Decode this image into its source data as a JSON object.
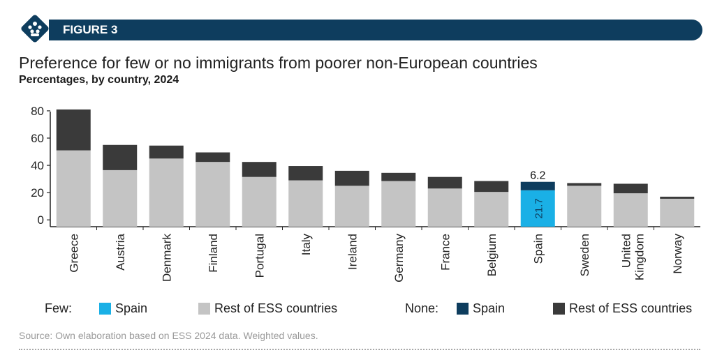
{
  "header": {
    "figure_label": "FIGURE 3",
    "logo_icon": "people-group-icon"
  },
  "title": "Preference for few or no immigrants from poorer non-European countries",
  "subtitle": "Percentages, by country, 2024",
  "legend": {
    "few_label": "Few:",
    "none_label": "None:",
    "items": [
      {
        "name": "Spain",
        "color": "#1ab0e6"
      },
      {
        "name": "Rest of ESS countries",
        "color": "#c4c4c4"
      },
      {
        "name": "Spain",
        "color": "#0e3d5e"
      },
      {
        "name": "Rest of ESS countries",
        "color": "#3a3a3a"
      }
    ]
  },
  "source": "Source: Own elaboration based on ESS 2024 data. Weighted values.",
  "chart_data": {
    "type": "bar",
    "stacked": true,
    "categories": [
      "Greece",
      "Austria",
      "Denmark",
      "Finland",
      "Portugal",
      "Italy",
      "Ireland",
      "Germany",
      "France",
      "Belgium",
      "Spain",
      "Sweden",
      "United Kingdom",
      "Norway"
    ],
    "category_lines": [
      [
        "Greece"
      ],
      [
        "Austria"
      ],
      [
        "Denmark"
      ],
      [
        "Finland"
      ],
      [
        "Portugal"
      ],
      [
        "Italy"
      ],
      [
        "Ireland"
      ],
      [
        "Germany"
      ],
      [
        "France"
      ],
      [
        "Belgium"
      ],
      [
        "Spain"
      ],
      [
        "Sweden"
      ],
      [
        "United",
        "Kingdom"
      ],
      [
        "Norway"
      ]
    ],
    "series": [
      {
        "name": "Few",
        "values": [
          51,
          36.5,
          45,
          42.5,
          31.5,
          29,
          25,
          28.5,
          23,
          20.5,
          21.7,
          25,
          19.5,
          15.5
        ]
      },
      {
        "name": "None",
        "values": [
          30,
          18.5,
          9.5,
          7,
          11,
          10.5,
          11,
          6,
          8.5,
          8,
          6.2,
          2,
          7,
          1.5
        ]
      }
    ],
    "highlight_category": "Spain",
    "colors": {
      "few": "#c4c4c4",
      "none": "#3a3a3a",
      "few_highlight": "#1ab0e6",
      "none_highlight": "#0e3d5e"
    },
    "data_labels": {
      "few": "21.7",
      "none": "6.2"
    },
    "yticks": [
      0,
      20,
      40,
      60,
      80
    ],
    "ylim": [
      -5,
      82
    ],
    "grid": false
  }
}
